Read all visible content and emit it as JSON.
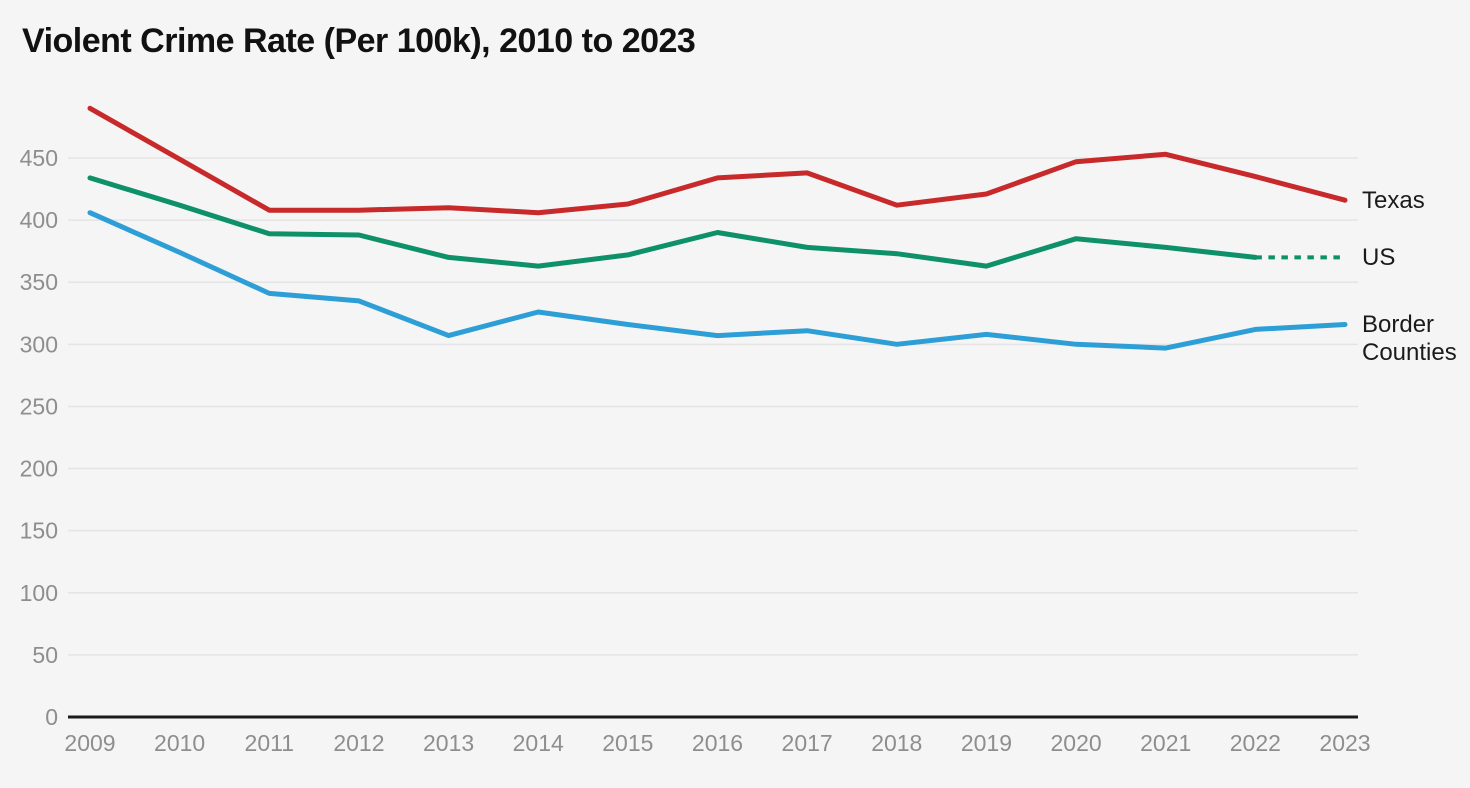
{
  "title": "Violent Crime Rate (Per 100k), 2010 to 2023",
  "colors": {
    "background": "#f5f5f5",
    "gridline": "#e4e4e4",
    "axis_line": "#1a1a1a",
    "tick_label": "#8e8e8e",
    "title_text": "#111111",
    "series_label_text": "#1b1b1b",
    "texas": "#c8292b",
    "us": "#0e9168",
    "border_counties": "#2d9fd6"
  },
  "chart_data": {
    "type": "line",
    "title": "Violent Crime Rate (Per 100k), 2010 to 2023",
    "x": [
      2009,
      2010,
      2011,
      2012,
      2013,
      2014,
      2015,
      2016,
      2017,
      2018,
      2019,
      2020,
      2021,
      2022,
      2023
    ],
    "series": [
      {
        "name": "Texas",
        "color_key": "texas",
        "line_style": "solid",
        "values": [
          490,
          449,
          408,
          408,
          410,
          406,
          413,
          434,
          438,
          412,
          421,
          447,
          453,
          435,
          416
        ]
      },
      {
        "name": "US",
        "color_key": "us",
        "line_style": "solid",
        "dashed_from_x": 2022,
        "values": [
          434,
          412,
          389,
          388,
          370,
          363,
          372,
          390,
          378,
          373,
          363,
          385,
          378,
          370,
          370
        ]
      },
      {
        "name": "Border Counties",
        "color_key": "border_counties",
        "line_style": "solid",
        "values": [
          406,
          374,
          341,
          335,
          307,
          326,
          316,
          307,
          311,
          300,
          308,
          300,
          297,
          312,
          316
        ]
      }
    ],
    "xlabel": "",
    "ylabel": "",
    "ylim": [
      0,
      500
    ],
    "yticks": [
      0,
      50,
      100,
      150,
      200,
      250,
      300,
      350,
      400,
      450
    ],
    "grid": "horizontal",
    "legend_position": "right-of-line-ends"
  }
}
